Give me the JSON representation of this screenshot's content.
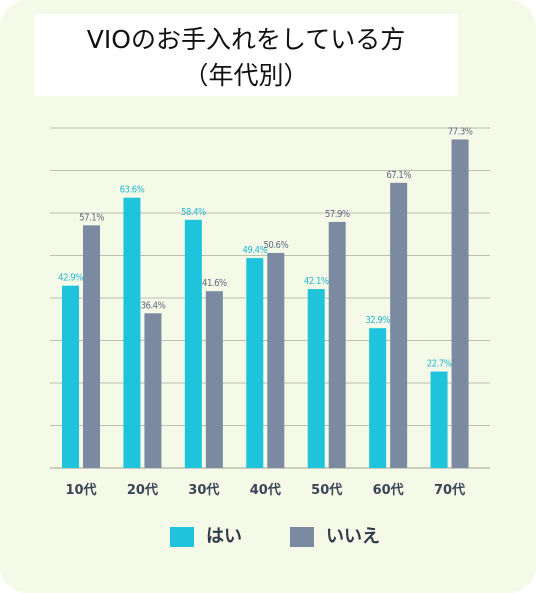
{
  "title": {
    "line1": "VIOのお手入れをしている方",
    "line2": "（年代別）"
  },
  "colors": {
    "background": "#f4f9e8",
    "grid": "#b9c1b0",
    "axis_text": "#3a4656"
  },
  "chart_data": {
    "type": "bar",
    "categories": [
      "10代",
      "20代",
      "30代",
      "40代",
      "50代",
      "60代",
      "70代"
    ],
    "series": [
      {
        "name": "はい",
        "color": "#1fc4dc",
        "label_color": "#27b8cf",
        "values": [
          42.9,
          63.6,
          58.4,
          49.4,
          42.1,
          32.9,
          22.7
        ],
        "labels": [
          "42.9%",
          "63.6%",
          "58.4%",
          "49.4%",
          "42.1%",
          "32.9%",
          "22.7%"
        ]
      },
      {
        "name": "いいえ",
        "color": "#7b8aa0",
        "label_color": "#5d6b7d",
        "values": [
          57.1,
          36.4,
          41.6,
          50.6,
          57.9,
          67.1,
          77.3
        ],
        "labels": [
          "57.1%",
          "36.4%",
          "41.6%",
          "50.6%",
          "57.9%",
          "67.1%",
          "77.3%"
        ]
      }
    ],
    "ylim": [
      0,
      80
    ],
    "gridlines": [
      0,
      10,
      20,
      30,
      40,
      50,
      60,
      70,
      80
    ],
    "grid": true,
    "legend": "bottom"
  }
}
